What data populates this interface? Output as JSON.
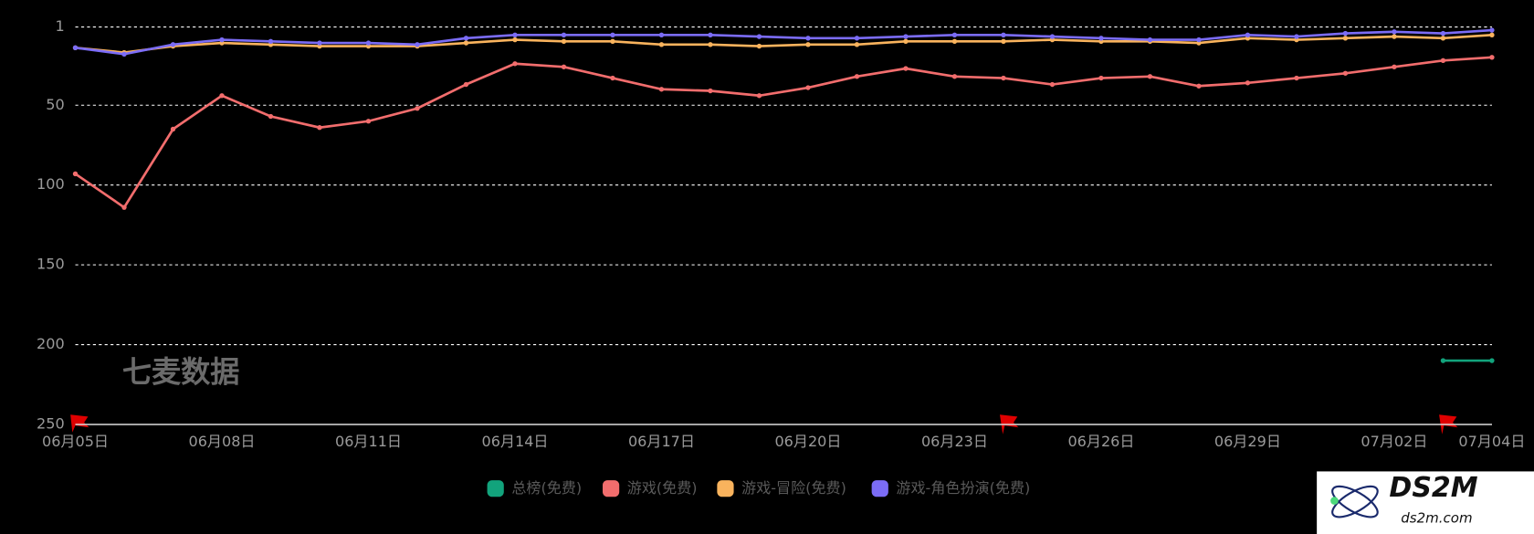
{
  "chart_data": {
    "type": "line",
    "categories": [
      "06月05日",
      null,
      null,
      "06月08日",
      null,
      null,
      "06月11日",
      null,
      null,
      "06月14日",
      null,
      null,
      "06月17日",
      null,
      null,
      "06月20日",
      null,
      null,
      "06月23日",
      null,
      null,
      "06月26日",
      null,
      null,
      "06月29日",
      null,
      null,
      "07月02日",
      null,
      "07月04日"
    ],
    "series": [
      {
        "name": "总榜(免费)",
        "color": "#12a37c",
        "values": [
          null,
          null,
          null,
          null,
          null,
          null,
          null,
          null,
          null,
          null,
          null,
          null,
          null,
          null,
          null,
          null,
          null,
          null,
          null,
          null,
          null,
          null,
          null,
          null,
          null,
          null,
          null,
          null,
          210,
          210
        ]
      },
      {
        "name": "游戏(免费)",
        "color": "#f26d6d",
        "values": [
          93,
          114,
          65,
          44,
          57,
          64,
          60,
          52,
          37,
          24,
          26,
          33,
          40,
          41,
          44,
          39,
          32,
          27,
          32,
          33,
          37,
          33,
          32,
          38,
          36,
          33,
          30,
          26,
          22,
          20
        ]
      },
      {
        "name": "游戏-冒险(免费)",
        "color": "#f9b35d",
        "values": [
          14,
          17,
          13,
          11,
          12,
          13,
          13,
          13,
          11,
          9,
          10,
          10,
          12,
          12,
          13,
          12,
          12,
          10,
          10,
          10,
          9,
          10,
          10,
          11,
          8,
          9,
          8,
          7,
          8,
          6
        ]
      },
      {
        "name": "游戏-角色扮演(免费)",
        "color": "#7b6cf6",
        "values": [
          14,
          18,
          12,
          9,
          10,
          11,
          11,
          12,
          8,
          6,
          6,
          6,
          6,
          6,
          7,
          8,
          8,
          7,
          6,
          6,
          7,
          8,
          9,
          9,
          6,
          7,
          5,
          4,
          5,
          3
        ]
      }
    ],
    "ylim": [
      1,
      250
    ],
    "yticks": [
      1,
      50,
      100,
      150,
      200,
      250
    ],
    "y_inverted": true,
    "grid": true,
    "legend": "bottom"
  },
  "watermark": "七麦数据",
  "logo": {
    "title": "DS2M",
    "url": "ds2m.com"
  }
}
